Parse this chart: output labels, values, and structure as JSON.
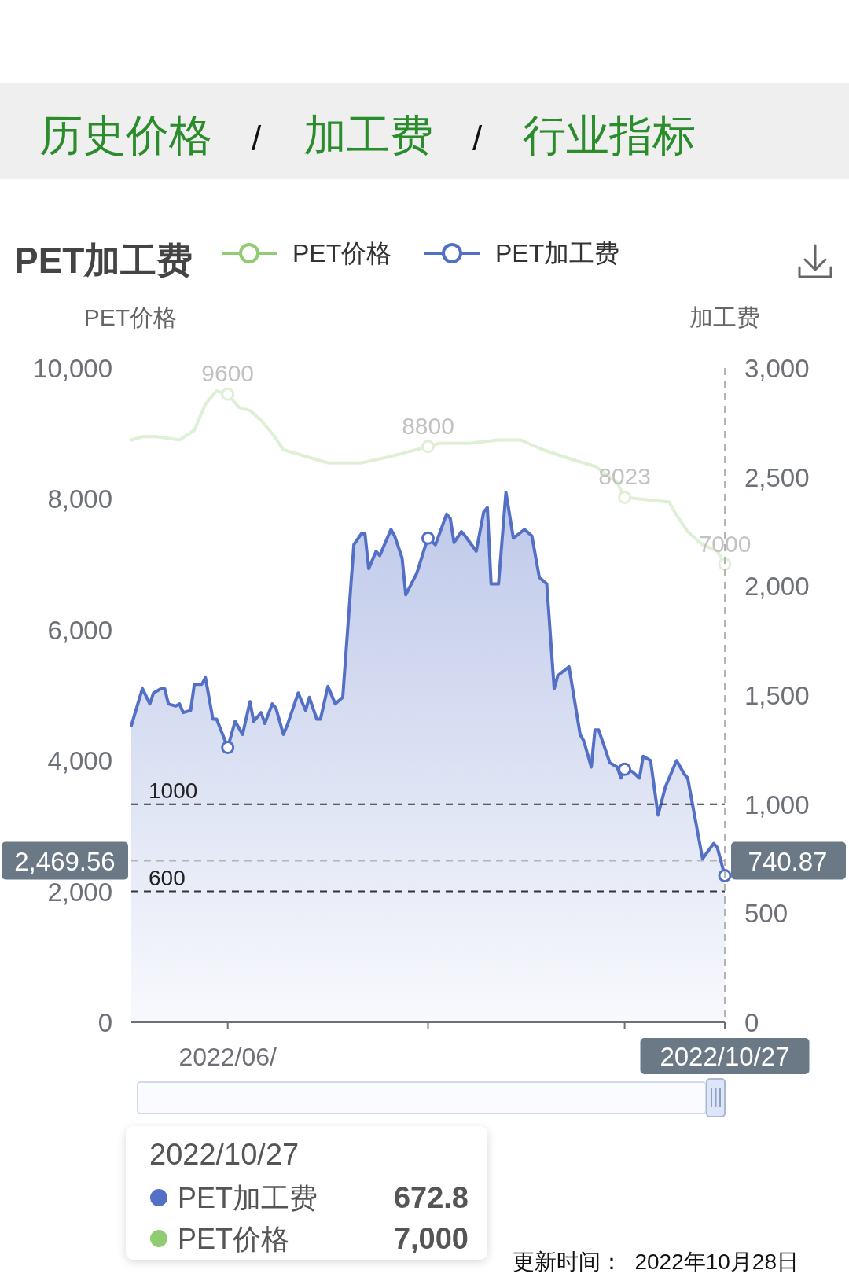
{
  "chart_data": {
    "type": "line",
    "title": "PET加工费",
    "ylabel": "PET价格",
    "y2label": "加工费",
    "legend": "top",
    "xlim": [
      "2022-05-20",
      "2022-10-27"
    ],
    "xticks": [
      {
        "value": "2022-06-15",
        "label": "2022/06/"
      },
      {
        "value": "2022-08-08",
        "label": null
      },
      {
        "value": "2022-09-30",
        "label": null
      },
      {
        "value": "2022-10-27",
        "label": "2022/10/27"
      }
    ],
    "ylim": [
      0,
      10000
    ],
    "yticks": [
      {
        "value": 0,
        "label": "0"
      },
      {
        "value": 2000,
        "label": "2,000"
      },
      {
        "value": 4000,
        "label": "4,000"
      },
      {
        "value": 6000,
        "label": "6,000"
      },
      {
        "value": 8000,
        "label": "8,000"
      },
      {
        "value": 10000,
        "label": "10,000"
      }
    ],
    "y2lim": [
      0,
      3000
    ],
    "y2ticks": [
      {
        "value": 0,
        "label": "0"
      },
      {
        "value": 500,
        "label": "500"
      },
      {
        "value": 1000,
        "label": "1,000"
      },
      {
        "value": 1500,
        "label": "1,500"
      },
      {
        "value": 2000,
        "label": "2,000"
      },
      {
        "value": 2500,
        "label": "2,500"
      },
      {
        "value": 3000,
        "label": "3,000"
      }
    ],
    "series": [
      {
        "name": "PET价格",
        "color": "#91cc75",
        "x": [
          "2022-05-20",
          "2022-05-23",
          "2022-05-27",
          "2022-06-02",
          "2022-06-06",
          "2022-06-09",
          "2022-06-12",
          "2022-06-15",
          "2022-06-18",
          "2022-06-21",
          "2022-06-24",
          "2022-06-27",
          "2022-06-30",
          "2022-07-03",
          "2022-07-09",
          "2022-07-12",
          "2022-07-21",
          "2022-07-29",
          "2022-08-08",
          "2022-08-11",
          "2022-08-19",
          "2022-08-27",
          "2022-09-02",
          "2022-09-08",
          "2022-09-16",
          "2022-09-22",
          "2022-09-28",
          "2022-09-30",
          "2022-10-12",
          "2022-10-14",
          "2022-10-17",
          "2022-10-21",
          "2022-10-25",
          "2022-10-27"
        ],
        "values": [
          8900,
          8950,
          8950,
          8900,
          9050,
          9450,
          9650,
          9600,
          9400,
          9350,
          9200,
          9000,
          8750,
          8700,
          8600,
          8550,
          8550,
          8650,
          8800,
          8850,
          8850,
          8900,
          8900,
          8750,
          8600,
          8500,
          8250,
          8023,
          7950,
          7750,
          7500,
          7300,
          7200,
          7000
        ],
        "value_labels": [
          null,
          null,
          null,
          null,
          null,
          null,
          null,
          "9600",
          null,
          null,
          null,
          null,
          null,
          null,
          null,
          null,
          null,
          null,
          "8800",
          null,
          null,
          null,
          null,
          null,
          null,
          null,
          null,
          "8023",
          null,
          null,
          null,
          null,
          null,
          "7000"
        ]
      },
      {
        "name": "PET加工费",
        "color": "#5470c6",
        "type": "area",
        "axis": "y2",
        "x": [
          "2022-05-20",
          "2022-05-23",
          "2022-05-25",
          "2022-05-26",
          "2022-05-28",
          "2022-05-29",
          "2022-05-30",
          "2022-06-01",
          "2022-06-02",
          "2022-06-03",
          "2022-06-05",
          "2022-06-06",
          "2022-06-08",
          "2022-06-09",
          "2022-06-11",
          "2022-06-12",
          "2022-06-15",
          "2022-06-17",
          "2022-06-19",
          "2022-06-21",
          "2022-06-22",
          "2022-06-24",
          "2022-06-25",
          "2022-06-27",
          "2022-06-28",
          "2022-06-30",
          "2022-07-01",
          "2022-07-04",
          "2022-07-06",
          "2022-07-07",
          "2022-07-09",
          "2022-07-10",
          "2022-07-12",
          "2022-07-14",
          "2022-07-16",
          "2022-07-19",
          "2022-07-21",
          "2022-07-22",
          "2022-07-23",
          "2022-07-25",
          "2022-07-26",
          "2022-07-29",
          "2022-07-30",
          "2022-08-01",
          "2022-08-02",
          "2022-08-05",
          "2022-08-07",
          "2022-08-08",
          "2022-08-10",
          "2022-08-13",
          "2022-08-14",
          "2022-08-15",
          "2022-08-17",
          "2022-08-18",
          "2022-08-21",
          "2022-08-23",
          "2022-08-24",
          "2022-08-25",
          "2022-08-27",
          "2022-08-29",
          "2022-08-31",
          "2022-09-03",
          "2022-09-05",
          "2022-09-07",
          "2022-09-09",
          "2022-09-11",
          "2022-09-12",
          "2022-09-15",
          "2022-09-18",
          "2022-09-19",
          "2022-09-21",
          "2022-09-22",
          "2022-09-23",
          "2022-09-26",
          "2022-09-27",
          "2022-09-28",
          "2022-09-29",
          "2022-09-30",
          "2022-10-02",
          "2022-10-04",
          "2022-10-05",
          "2022-10-07",
          "2022-10-09",
          "2022-10-11",
          "2022-10-14",
          "2022-10-16",
          "2022-10-17",
          "2022-10-21",
          "2022-10-24",
          "2022-10-25",
          "2022-10-27"
        ],
        "values": [
          1360,
          1530,
          1460,
          1510,
          1530,
          1530,
          1460,
          1450,
          1460,
          1420,
          1430,
          1550,
          1550,
          1580,
          1390,
          1390,
          1260,
          1380,
          1320,
          1470,
          1380,
          1420,
          1370,
          1460,
          1440,
          1320,
          1360,
          1510,
          1430,
          1490,
          1390,
          1390,
          1540,
          1460,
          1490,
          2190,
          2240,
          2240,
          2080,
          2160,
          2140,
          2260,
          2230,
          2130,
          1960,
          2060,
          2170,
          2220,
          2190,
          2330,
          2310,
          2200,
          2250,
          2230,
          2160,
          2340,
          2360,
          2010,
          2010,
          2430,
          2220,
          2260,
          2230,
          2040,
          2010,
          1530,
          1590,
          1630,
          1320,
          1290,
          1170,
          1340,
          1340,
          1190,
          1180,
          1170,
          1120,
          1160,
          1150,
          1120,
          1220,
          1200,
          950,
          1080,
          1200,
          1140,
          1120,
          750,
          820,
          800,
          672.8
        ]
      }
    ],
    "ref_lines": [
      {
        "axis": "y2",
        "value": 1000,
        "label": "1000",
        "line_style": "dashed"
      },
      {
        "axis": "y2",
        "value": 600,
        "label": "600",
        "line_style": "dashed"
      },
      {
        "axis": "y",
        "value": 2469.56,
        "label": "2,469.56",
        "line_style": "dashed",
        "color": "#b4b4b4"
      },
      {
        "axis": "x",
        "value": "2022-10-27",
        "line_style": "dashed",
        "color": "#b4b4b4"
      }
    ],
    "annotations": [
      "历史价格",
      "/",
      "加工费",
      "/",
      "行业指标",
      "2022/10/27",
      "PET加工费",
      "672.8",
      "PET价格",
      "7,000",
      "更新时间：  2022年10月28日",
      "740.87"
    ]
  }
}
